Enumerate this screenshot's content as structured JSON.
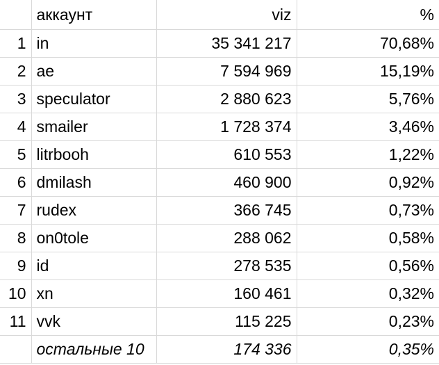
{
  "header": {
    "num": "",
    "account": "аккаунт",
    "viz": "viz",
    "percent": "%"
  },
  "rows": [
    {
      "num": "1",
      "account": "in",
      "viz": "35 341 217",
      "percent": "70,68%"
    },
    {
      "num": "2",
      "account": "ae",
      "viz": "7 594 969",
      "percent": "15,19%"
    },
    {
      "num": "3",
      "account": "speculator",
      "viz": "2 880 623",
      "percent": "5,76%"
    },
    {
      "num": "4",
      "account": "smailer",
      "viz": "1 728 374",
      "percent": "3,46%"
    },
    {
      "num": "5",
      "account": "litrbooh",
      "viz": "610 553",
      "percent": "1,22%"
    },
    {
      "num": "6",
      "account": "dmilash",
      "viz": "460 900",
      "percent": "0,92%"
    },
    {
      "num": "7",
      "account": "rudex",
      "viz": "366 745",
      "percent": "0,73%"
    },
    {
      "num": "8",
      "account": "on0tole",
      "viz": "288 062",
      "percent": "0,58%"
    },
    {
      "num": "9",
      "account": "id",
      "viz": "278 535",
      "percent": "0,56%"
    },
    {
      "num": "10",
      "account": "xn",
      "viz": "160 461",
      "percent": "0,32%"
    },
    {
      "num": "11",
      "account": "vvk",
      "viz": "115 225",
      "percent": "0,23%"
    }
  ],
  "footer": {
    "num": "",
    "account": "остальные 10",
    "viz": "174 336",
    "percent": "0,35%"
  }
}
